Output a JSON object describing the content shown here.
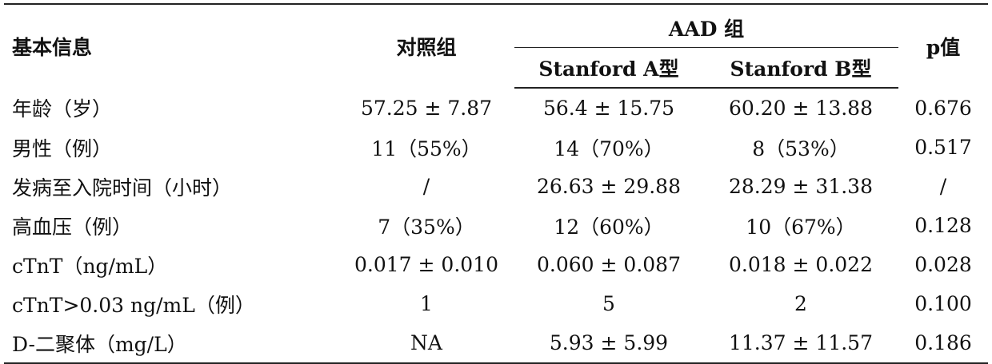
{
  "table": {
    "headers": {
      "basic_info": "基本信息",
      "control": "对照组",
      "aad_group": "AAD  组",
      "stanford_a": "Stanford A型",
      "stanford_b": "Stanford B型",
      "p_value": "p值"
    },
    "rows": [
      {
        "label": "年龄（岁）",
        "control": "57.25 ± 7.87",
        "a": "56.4 ± 15.75",
        "b": "60.20 ± 13.88",
        "p": "0.676"
      },
      {
        "label": "男性（例）",
        "control": "11（55%）",
        "a": "14（70%）",
        "b": "8（53%）",
        "p": "0.517"
      },
      {
        "label": "发病至入院时间（小时）",
        "control": "/",
        "a": "26.63 ± 29.88",
        "b": "28.29 ± 31.38",
        "p": "/"
      },
      {
        "label": "高血压（例）",
        "control": "7（35%）",
        "a": "12（60%）",
        "b": "10（67%）",
        "p": "0.128"
      },
      {
        "label": "cTnT（ng/mL）",
        "control": "0.017 ± 0.010",
        "a": "0.060 ± 0.087",
        "b": "0.018 ± 0.022",
        "p": "0.028"
      },
      {
        "label": "cTnT>0.03 ng/mL（例）",
        "control": "1",
        "a": "5",
        "b": "2",
        "p": "0.100"
      },
      {
        "label": "D-二聚体（mg/L）",
        "control": "NA",
        "a": "5.93 ± 5.99",
        "b": "11.37 ± 11.57",
        "p": "0.186"
      }
    ]
  }
}
